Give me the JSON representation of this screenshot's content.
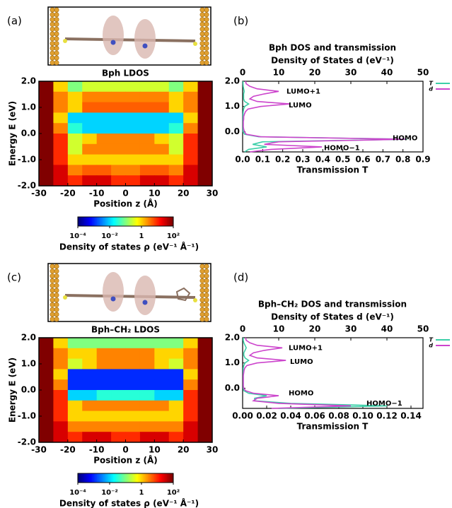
{
  "chart_data": [
    {
      "type": "heatmap",
      "panel_label": "(a)",
      "title": "Bph  LDOS",
      "xlabel": "Position z (Å)",
      "ylabel": "Energy E (eV)",
      "x": [
        -27.5,
        -22.5,
        -17.5,
        -12.5,
        -7.5,
        -2.5,
        2.5,
        7.5,
        12.5,
        17.5,
        22.5,
        27.5
      ],
      "y": [
        1.8,
        1.4,
        1.0,
        0.6,
        0.2,
        -0.2,
        -0.6,
        -1.0,
        -1.4,
        -1.8
      ],
      "values": [
        [
          100,
          1,
          0.1,
          0.3,
          0.3,
          0.3,
          0.3,
          0.3,
          0.3,
          0.1,
          1,
          100
        ],
        [
          100,
          3,
          1,
          3,
          3,
          3,
          3,
          3,
          3,
          1,
          3,
          100
        ],
        [
          100,
          3,
          1,
          5,
          5,
          5,
          5,
          5,
          5,
          1,
          3,
          100
        ],
        [
          100,
          1,
          0.01,
          0.01,
          0.01,
          0.01,
          0.01,
          0.01,
          0.01,
          0.01,
          1,
          100
        ],
        [
          100,
          3,
          0.03,
          0.01,
          0.01,
          0.01,
          0.01,
          0.01,
          0.01,
          0.03,
          3,
          100
        ],
        [
          100,
          10,
          0.3,
          1,
          3,
          3,
          3,
          3,
          1,
          0.3,
          10,
          100
        ],
        [
          100,
          10,
          0.3,
          3,
          3,
          3,
          3,
          3,
          3,
          0.3,
          10,
          100
        ],
        [
          100,
          10,
          1,
          1,
          1,
          1,
          1,
          1,
          1,
          1,
          10,
          100
        ],
        [
          100,
          30,
          3,
          5,
          5,
          3,
          3,
          5,
          5,
          3,
          30,
          100
        ],
        [
          100,
          30,
          10,
          30,
          30,
          10,
          10,
          30,
          30,
          10,
          30,
          100
        ]
      ],
      "xlim": [
        -30,
        30
      ],
      "xticks": [
        -30,
        -20,
        -10,
        0,
        10,
        20,
        30
      ],
      "ylim": [
        -2,
        2
      ],
      "yticks": [
        {
          "value": 2,
          "label": "2.0"
        },
        {
          "value": 1,
          "label": "1.0"
        },
        {
          "value": 0,
          "label": "0.0"
        },
        {
          "value": -1,
          "label": "-1.0"
        },
        {
          "value": -2,
          "label": "-2.0"
        }
      ],
      "colorbar": {
        "label": "Density of states ρ (eV⁻¹ Å⁻¹)",
        "scale": "log",
        "lim": [
          0.0001,
          100
        ],
        "colormap": "jet",
        "ticks": [
          {
            "value": 0.0001,
            "label": "10⁻⁴"
          },
          {
            "value": 0.01,
            "label": "10⁻²"
          },
          1,
          {
            "value": 100,
            "label": "10²"
          }
        ]
      }
    },
    {
      "type": "line",
      "panel_label": "(b)",
      "title": "Bph  DOS and transmission",
      "x2label": "Density of States d (eV⁻¹)",
      "xlabel": "Transmission T",
      "y": [
        -0.8,
        -0.7,
        -0.6,
        -0.5,
        -0.4,
        -0.3,
        -0.2,
        -0.1,
        0.0,
        0.1,
        0.2,
        0.3,
        0.4,
        0.5,
        0.6,
        0.7,
        0.8,
        0.9,
        1.0,
        1.1,
        1.2,
        1.3,
        1.4,
        1.5,
        1.6,
        1.7,
        1.8,
        1.9,
        2.0
      ],
      "xlim": [
        0,
        0.9
      ],
      "xticks": [
        {
          "value": 0,
          "label": "0.0"
        },
        0.1,
        0.2,
        0.3,
        0.4,
        0.5,
        0.6,
        0.7,
        0.8,
        0.9
      ],
      "x2lim": [
        0,
        50
      ],
      "x2ticks": [
        0,
        10,
        20,
        30,
        40,
        50
      ],
      "ylim": [
        -0.8,
        2.0
      ],
      "yticks": [
        {
          "value": 2,
          "label": "2.0"
        },
        {
          "value": 1,
          "label": "1.0"
        },
        {
          "value": 0,
          "label": "0.0"
        }
      ],
      "series": [
        {
          "name": "T",
          "color": "#3ccfa8",
          "axis": "x",
          "values": [
            0.01,
            0.03,
            0.12,
            0.05,
            0.1,
            0.82,
            0.08,
            0.01,
            0.002,
            0.002,
            0.002,
            0.002,
            0.002,
            0.002,
            0.002,
            0.002,
            0.003,
            0.005,
            0.01,
            0.03,
            0.01,
            0.005,
            0.005,
            0.005,
            0.008,
            0.005,
            0.003,
            0.002,
            0.002
          ]
        },
        {
          "name": "d",
          "color": "#cc44cc",
          "axis": "x2",
          "values": [
            2,
            8,
            22,
            6,
            10,
            45,
            5,
            1,
            0.5,
            0.3,
            0.2,
            0.2,
            0.2,
            0.3,
            0.3,
            0.5,
            0.8,
            1.5,
            5,
            13,
            4,
            2,
            3,
            6,
            10,
            4,
            2,
            1,
            0.8
          ]
        }
      ],
      "annotations": [
        "LUMO+1",
        "LUMO",
        "HOMO",
        "HOMO−1"
      ]
    },
    {
      "type": "heatmap",
      "panel_label": "(c)",
      "title": "Bph–CH₂  LDOS",
      "xlabel": "Position z (Å)",
      "ylabel": "Energy E (eV)",
      "x": [
        -27.5,
        -22.5,
        -17.5,
        -12.5,
        -7.5,
        -2.5,
        2.5,
        7.5,
        12.5,
        17.5,
        22.5,
        27.5
      ],
      "y": [
        1.8,
        1.4,
        1.0,
        0.6,
        0.2,
        -0.2,
        -0.6,
        -1.0,
        -1.4,
        -1.8
      ],
      "values": [
        [
          100,
          1,
          0.1,
          0.1,
          0.1,
          0.1,
          0.1,
          0.1,
          0.1,
          0.1,
          1,
          100
        ],
        [
          100,
          3,
          1,
          1,
          3,
          3,
          3,
          3,
          1,
          1,
          3,
          100
        ],
        [
          100,
          3,
          0.3,
          1,
          3,
          3,
          3,
          3,
          1,
          0.3,
          3,
          100
        ],
        [
          100,
          1,
          0.001,
          0.001,
          0.001,
          0.001,
          0.001,
          0.001,
          0.001,
          0.001,
          1,
          100
        ],
        [
          100,
          3,
          0.001,
          0.001,
          0.001,
          0.001,
          0.001,
          0.001,
          0.001,
          0.001,
          3,
          100
        ],
        [
          100,
          10,
          0.01,
          0.01,
          0.03,
          0.03,
          0.03,
          0.03,
          0.01,
          0.01,
          10,
          100
        ],
        [
          100,
          10,
          1,
          3,
          3,
          3,
          3,
          3,
          3,
          1,
          10,
          100
        ],
        [
          100,
          10,
          1,
          1,
          1,
          1,
          1,
          1,
          1,
          1,
          10,
          100
        ],
        [
          100,
          30,
          3,
          3,
          3,
          3,
          3,
          3,
          3,
          3,
          30,
          100
        ],
        [
          100,
          30,
          10,
          30,
          30,
          10,
          10,
          30,
          30,
          10,
          30,
          100
        ]
      ],
      "xlim": [
        -30,
        30
      ],
      "xticks": [
        -30,
        -20,
        -10,
        0,
        10,
        20,
        30
      ],
      "ylim": [
        -2,
        2
      ],
      "yticks": [
        {
          "value": 2,
          "label": "2.0"
        },
        {
          "value": 1,
          "label": "1.0"
        },
        {
          "value": 0,
          "label": "0.0"
        },
        {
          "value": -1,
          "label": "-1.0"
        },
        {
          "value": -2,
          "label": "-2.0"
        }
      ],
      "colorbar": {
        "label": "Density of states ρ (eV⁻¹ Å⁻¹)",
        "scale": "log",
        "lim": [
          0.0001,
          100
        ],
        "colormap": "jet",
        "ticks": [
          {
            "value": 0.0001,
            "label": "10⁻⁴"
          },
          {
            "value": 0.01,
            "label": "10⁻²"
          },
          1,
          {
            "value": 100,
            "label": "10²"
          }
        ]
      }
    },
    {
      "type": "line",
      "panel_label": "(d)",
      "title": "Bph–CH₂  DOS and transmission",
      "x2label": "Density of States d (eV⁻¹)",
      "xlabel": "Transmission T",
      "y": [
        -0.8,
        -0.7,
        -0.6,
        -0.5,
        -0.4,
        -0.3,
        -0.2,
        -0.1,
        0.0,
        0.1,
        0.2,
        0.3,
        0.4,
        0.5,
        0.6,
        0.7,
        0.8,
        0.9,
        1.0,
        1.1,
        1.2,
        1.3,
        1.4,
        1.5,
        1.6,
        1.7,
        1.8,
        1.9,
        2.0
      ],
      "xlim": [
        0,
        0.15
      ],
      "xticks": [
        {
          "value": 0,
          "label": "0.00"
        },
        {
          "value": 0.02,
          "label": "0.02"
        },
        {
          "value": 0.04,
          "label": "0.04"
        },
        {
          "value": 0.06,
          "label": "0.06"
        },
        {
          "value": 0.08,
          "label": "0.08"
        },
        {
          "value": 0.1,
          "label": "0.10"
        },
        {
          "value": 0.12,
          "label": "0.12"
        },
        {
          "value": 0.14,
          "label": "0.14"
        }
      ],
      "x2lim": [
        0,
        50
      ],
      "x2ticks": [
        0,
        10,
        20,
        30,
        40,
        50
      ],
      "ylim": [
        -0.8,
        2.0
      ],
      "yticks": [
        {
          "value": 2,
          "label": "2.0"
        },
        {
          "value": 1,
          "label": "1.0"
        },
        {
          "value": 0,
          "label": "0.0"
        }
      ],
      "series": [
        {
          "name": "T",
          "color": "#3ccfa8",
          "axis": "x",
          "values": [
            0.03,
            0.12,
            0.04,
            0.01,
            0.01,
            0.02,
            0.005,
            0.001,
            0.0005,
            0.0005,
            0.0005,
            0.0005,
            0.0005,
            0.0005,
            0.0005,
            0.0005,
            0.0005,
            0.001,
            0.002,
            0.005,
            0.002,
            0.001,
            0.001,
            0.002,
            0.003,
            0.002,
            0.001,
            0.0005,
            0.0005
          ]
        },
        {
          "name": "d",
          "color": "#cc44cc",
          "axis": "x2",
          "values": [
            8,
            30,
            10,
            3,
            4,
            10,
            3,
            0.8,
            0.3,
            0.2,
            0.2,
            0.2,
            0.2,
            0.2,
            0.3,
            0.4,
            0.6,
            1.2,
            4,
            12,
            4,
            2,
            3,
            6,
            11,
            4,
            2,
            1,
            0.8
          ]
        }
      ],
      "annotations": [
        "LUMO+1",
        "LUMO",
        "HOMO",
        "HOMO−1"
      ]
    }
  ]
}
